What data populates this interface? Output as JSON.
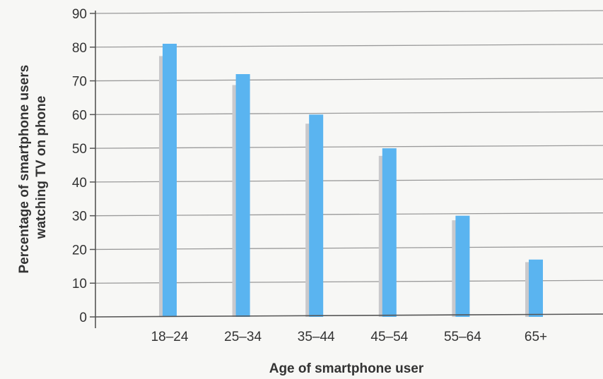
{
  "chart_data": {
    "type": "bar",
    "categories": [
      "18–24",
      "25–34",
      "35–44",
      "45–54",
      "55–64",
      "65+"
    ],
    "values": [
      81,
      72,
      60,
      50,
      30,
      17
    ],
    "xlabel": "Age of smartphone user",
    "ylabel_lines": [
      "Percentage of smartphone users",
      "watching TV on phone"
    ],
    "ylim": [
      0,
      90
    ],
    "yticks": [
      0,
      10,
      20,
      30,
      40,
      50,
      60,
      70,
      80,
      90
    ],
    "grid": true,
    "colors": {
      "bar": "#5ab4f0",
      "bar_shadow": "#c9c9cc",
      "grid": "#9a9a9a",
      "axis": "#555555"
    }
  }
}
